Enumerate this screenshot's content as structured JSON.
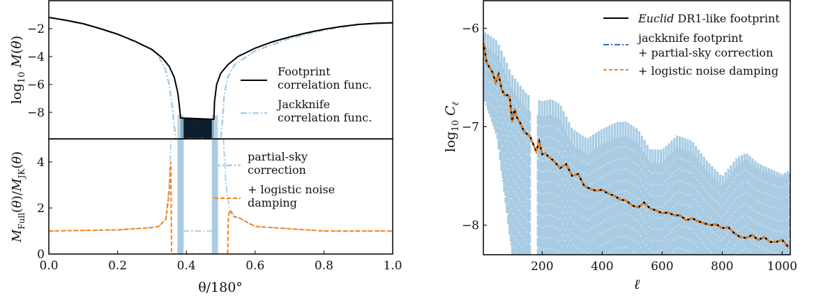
{
  "colors": {
    "footprint": "#0b1f2e",
    "jackknife": "#a9cce3",
    "jackknife_legend": "#2b6fb0",
    "logistic": "#ff7f0e",
    "axis": "#000000"
  },
  "chart_data": [
    {
      "type": "line",
      "panel": "left-top",
      "ylabel": "log10 M(θ)",
      "xlim": [
        0,
        1
      ],
      "ylim": [
        -9.9,
        0
      ],
      "yticks": [
        "−2",
        "−4",
        "−6",
        "−8"
      ],
      "ytick_values": [
        -2,
        -4,
        -6,
        -8
      ],
      "legend": {
        "placement": "center-right",
        "entries": [
          "Footprint correlation func.",
          "Jackknife correlation func."
        ],
        "lines": [
          [
            "Footprint",
            "correlation func."
          ],
          [
            "Jackknife",
            "correlation func."
          ]
        ]
      },
      "series": [
        {
          "name": "Footprint correlation func.",
          "style": "solid",
          "x": [
            0,
            0.05,
            0.1,
            0.15,
            0.2,
            0.25,
            0.3,
            0.33,
            0.35,
            0.365,
            0.375,
            0.38,
            0.383,
            0.48,
            0.482,
            0.488,
            0.5,
            0.52,
            0.55,
            0.6,
            0.65,
            0.7,
            0.75,
            0.8,
            0.85,
            0.9,
            0.95,
            1.0
          ],
          "y": [
            -1.2,
            -1.4,
            -1.65,
            -2.0,
            -2.4,
            -2.9,
            -3.5,
            -4.1,
            -4.7,
            -5.5,
            -6.6,
            -7.6,
            -8.4,
            -8.5,
            -7.2,
            -6.0,
            -5.2,
            -4.6,
            -4.0,
            -3.4,
            -2.95,
            -2.6,
            -2.3,
            -2.05,
            -1.85,
            -1.7,
            -1.62,
            -1.58
          ]
        },
        {
          "name": "Jackknife correlation func.",
          "style": "dashdot",
          "x": [
            0,
            0.1,
            0.2,
            0.3,
            0.32,
            0.34,
            0.35,
            0.36,
            0.365,
            0.37,
            0.5,
            0.505,
            0.51,
            0.52,
            0.54,
            0.6,
            0.7,
            0.8,
            0.9,
            1.0
          ],
          "y": [
            -1.2,
            -1.65,
            -2.4,
            -3.5,
            -4.0,
            -5.0,
            -6.0,
            -7.8,
            -9.0,
            -9.9,
            -9.9,
            -8.5,
            -6.8,
            -5.5,
            -4.6,
            -3.6,
            -2.7,
            -2.1,
            -1.7,
            -1.58
          ]
        }
      ]
    },
    {
      "type": "line",
      "panel": "left-bottom",
      "xlabel": "θ/180°",
      "ylabel": "M_Full(θ)/M_JK(θ)",
      "xlim": [
        0,
        1
      ],
      "ylim": [
        0,
        5
      ],
      "xticks": [
        "0.0",
        "0.2",
        "0.4",
        "0.6",
        "0.8",
        "1.0"
      ],
      "xtick_values": [
        0,
        0.2,
        0.4,
        0.6,
        0.8,
        1.0
      ],
      "yticks": [
        "0",
        "2",
        "4"
      ],
      "ytick_values": [
        0,
        2,
        4
      ],
      "legend": {
        "placement": "top-right",
        "entries": [
          "partial-sky correction",
          "+ logistic noise damping"
        ],
        "lines": [
          [
            "partial-sky",
            "correction"
          ],
          [
            "+ logistic noise",
            "damping"
          ]
        ]
      },
      "series": [
        {
          "name": "partial-sky correction",
          "style": "dashdot",
          "x": [
            0,
            0.2,
            0.3,
            0.32,
            0.34,
            0.35,
            0.355
          ],
          "y": [
            1.0,
            1.05,
            1.15,
            1.2,
            1.5,
            3.0,
            5.0
          ]
        },
        {
          "name": "partial-sky correction (mid)",
          "style": "dashdot",
          "x": [
            0.39,
            0.48
          ],
          "y": [
            1.0,
            1.0
          ]
        },
        {
          "name": "partial-sky correction (right)",
          "style": "dashdot",
          "x": [
            0.508,
            0.515,
            0.525,
            0.54,
            0.55,
            0.58,
            0.6,
            0.65,
            0.75,
            0.8,
            1.0
          ],
          "y": [
            5.0,
            3.0,
            2.0,
            1.65,
            1.6,
            1.35,
            1.2,
            1.15,
            1.05,
            1.0,
            1.0
          ]
        },
        {
          "name": "+ logistic noise damping",
          "style": "dashed",
          "x": [
            0,
            0.2,
            0.3,
            0.32,
            0.34,
            0.35,
            0.355,
            0.357,
            0.36,
            0.52,
            0.522,
            0.525,
            0.54,
            0.55,
            0.58,
            0.6,
            0.65,
            0.75,
            0.8,
            1.0
          ],
          "y": [
            1.0,
            1.05,
            1.15,
            1.2,
            1.5,
            2.6,
            4.0,
            0,
            0,
            0,
            1.5,
            1.9,
            1.6,
            1.6,
            1.35,
            1.2,
            1.15,
            1.05,
            1.0,
            1.0
          ]
        }
      ]
    },
    {
      "type": "line",
      "panel": "right",
      "xlabel": "ℓ",
      "ylabel": "log10 Cℓ",
      "xlim": [
        4,
        1027
      ],
      "ylim": [
        -8.3,
        -5.72
      ],
      "xticks": [
        "200",
        "400",
        "600",
        "800",
        "1000"
      ],
      "xtick_values": [
        200,
        400,
        600,
        800,
        1000
      ],
      "yticks": [
        "−6",
        "−7",
        "−8"
      ],
      "ytick_values": [
        -6,
        -7,
        -8
      ],
      "legend": {
        "placement": "top-right",
        "entries": [
          "Euclid DR1-like footprint",
          "jackknife footprint + partial-sky correction",
          "+ logistic noise damping"
        ]
      },
      "legend_text": {
        "euclid": "Euclid",
        "dr1": " DR1-like footprint",
        "jk1": "jackknife footprint",
        "jk2": "+ partial-sky correction",
        "log": "+ logistic noise damping"
      },
      "series": [
        {
          "name": "Euclid DR1-like footprint",
          "style": "solid",
          "x": [
            5,
            15,
            25,
            35,
            45,
            55,
            65,
            75,
            85,
            92,
            100,
            108,
            115,
            125,
            140,
            160,
            180,
            190,
            200,
            210,
            220,
            240,
            260,
            280,
            300,
            320,
            340,
            360,
            380,
            400,
            420,
            440,
            460,
            480,
            500,
            520,
            540,
            560,
            580,
            600,
            620,
            640,
            660,
            680,
            700,
            720,
            740,
            760,
            780,
            800,
            820,
            840,
            860,
            880,
            900,
            920,
            940,
            960,
            980,
            1000,
            1020
          ],
          "y": [
            -6.15,
            -6.35,
            -6.4,
            -6.45,
            -6.55,
            -6.47,
            -6.62,
            -6.68,
            -6.68,
            -6.7,
            -6.95,
            -6.82,
            -6.9,
            -6.95,
            -7.05,
            -7.1,
            -7.25,
            -7.15,
            -7.28,
            -7.27,
            -7.3,
            -7.35,
            -7.42,
            -7.38,
            -7.5,
            -7.48,
            -7.6,
            -7.63,
            -7.65,
            -7.64,
            -7.68,
            -7.7,
            -7.74,
            -7.75,
            -7.8,
            -7.82,
            -7.77,
            -7.83,
            -7.85,
            -7.88,
            -7.87,
            -7.9,
            -7.9,
            -7.95,
            -7.93,
            -7.96,
            -7.98,
            -8.0,
            -7.99,
            -8.03,
            -8.02,
            -8.08,
            -8.12,
            -8.13,
            -8.1,
            -8.15,
            -8.12,
            -8.17,
            -8.17,
            -8.15,
            -8.22
          ]
        },
        {
          "name": "jackknife footprint + partial-sky correction",
          "style": "dashdot",
          "band": true,
          "x": [
            5,
            50,
            100,
            150,
            200,
            230,
            260,
            300,
            350,
            400,
            450,
            480,
            520,
            560,
            600,
            650,
            700,
            750,
            800,
            850,
            880,
            920,
            960,
            1000,
            1027
          ],
          "upper": [
            -6.1,
            -6.2,
            -6.55,
            -6.75,
            -6.82,
            -6.8,
            -6.85,
            -7.1,
            -7.2,
            -7.1,
            -7.03,
            -7.02,
            -7.1,
            -7.3,
            -7.3,
            -7.15,
            -7.2,
            -7.4,
            -7.55,
            -7.35,
            -7.3,
            -7.4,
            -7.45,
            -7.5,
            -7.45
          ],
          "lower": [
            -6.7,
            -7.1,
            -8.3,
            -8.3,
            -8.3,
            -8.3,
            -8.3,
            -8.3,
            -8.3,
            -8.3,
            -8.3,
            -8.3,
            -8.3,
            -8.3,
            -8.3,
            -8.3,
            -8.3,
            -8.3,
            -8.3,
            -8.3,
            -8.3,
            -8.3,
            -8.3,
            -8.3,
            -8.3
          ]
        },
        {
          "name": "+ logistic noise damping",
          "style": "dashed",
          "same_as": "Euclid DR1-like footprint"
        }
      ]
    }
  ]
}
